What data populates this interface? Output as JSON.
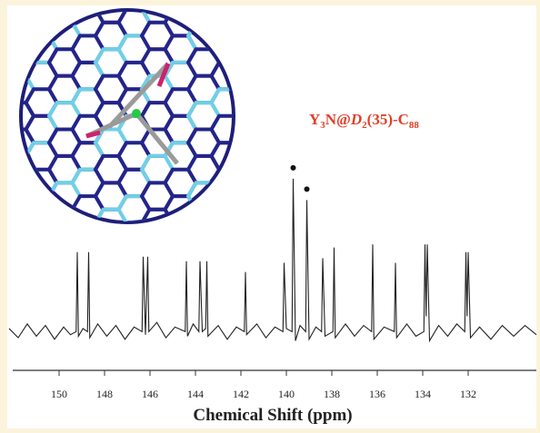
{
  "chart_data": {
    "type": "line",
    "formula": [
      "Y",
      "3",
      "N@",
      "D",
      "2",
      "(35)-C",
      "88"
    ],
    "xlabel": "Chemical Shift  (ppm)",
    "xlim": [
      152.2,
      129
    ],
    "ylim": [
      -20,
      110
    ],
    "xticks": [
      150,
      148,
      146,
      144,
      142,
      140,
      138,
      136,
      134,
      132
    ],
    "marked_x": [
      139.7,
      139.1
    ],
    "series": [
      {
        "color": "#222222",
        "x": [
          152.2,
          151.8,
          151.4,
          151.0,
          150.6,
          150.2,
          149.8,
          149.5,
          149.25,
          149.2,
          149.15,
          148.95,
          148.75,
          148.7,
          148.65,
          148.3,
          147.9,
          147.5,
          147.1,
          146.7,
          146.35,
          146.3,
          146.2,
          146.1,
          146.05,
          145.7,
          145.3,
          144.9,
          144.45,
          144.4,
          144.35,
          144.1,
          143.85,
          143.8,
          143.7,
          143.55,
          143.5,
          143.45,
          143.0,
          142.6,
          142.2,
          141.85,
          141.8,
          141.75,
          141.3,
          140.9,
          140.5,
          140.15,
          140.1,
          140.0,
          139.75,
          139.7,
          139.6,
          139.4,
          139.15,
          139.1,
          139.0,
          138.7,
          138.45,
          138.4,
          138.3,
          137.95,
          137.9,
          137.85,
          137.4,
          137.0,
          136.6,
          136.25,
          136.2,
          136.15,
          135.7,
          135.25,
          135.2,
          135.15,
          134.7,
          134.3,
          133.95,
          133.9,
          133.85,
          133.8,
          133.7,
          133.3,
          132.9,
          132.5,
          132.15,
          132.1,
          132.05,
          132.0,
          131.9,
          131.5,
          131.0,
          130.5,
          130.0,
          129.5,
          129.0
        ],
        "values": [
          2,
          -4,
          5,
          -3,
          4,
          -5,
          3,
          -2,
          0,
          52,
          -3,
          2,
          0,
          52,
          -4,
          5,
          -3,
          4,
          -5,
          3,
          0,
          49,
          -2,
          49,
          0,
          6,
          -4,
          3,
          0,
          46,
          -3,
          5,
          0,
          46,
          0,
          2,
          46,
          -3,
          4,
          -5,
          3,
          0,
          39,
          -2,
          5,
          -4,
          3,
          0,
          45,
          2,
          0,
          100,
          -6,
          4,
          0,
          86,
          -5,
          3,
          0,
          48,
          -3,
          0,
          55,
          -4,
          5,
          -3,
          4,
          0,
          57,
          -5,
          3,
          0,
          45,
          -4,
          5,
          -3,
          0,
          57,
          10,
          57,
          -6,
          4,
          -3,
          5,
          0,
          52,
          10,
          52,
          -4,
          3,
          -5,
          4,
          -3,
          4,
          -2
        ]
      }
    ]
  }
}
